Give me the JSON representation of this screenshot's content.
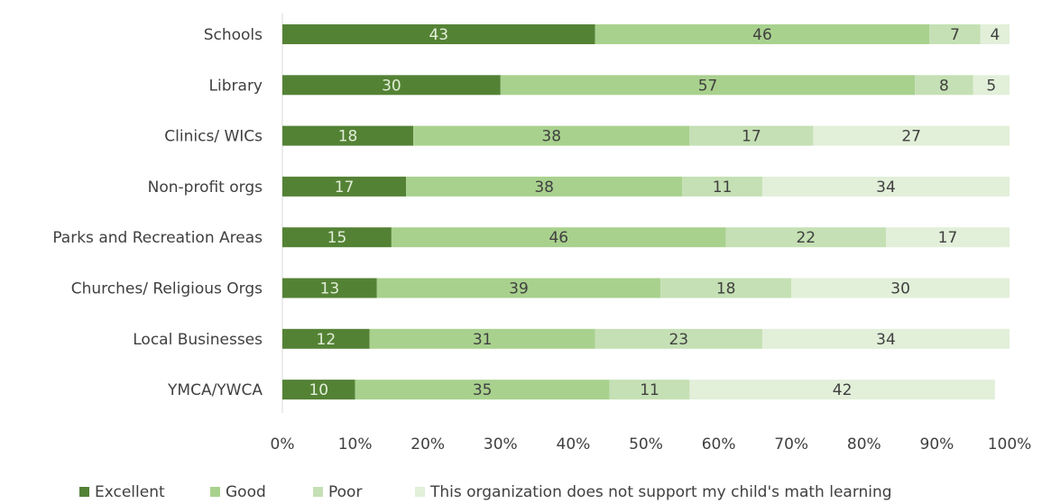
{
  "chart_data": {
    "type": "bar",
    "orientation": "horizontal",
    "stacked": "percent",
    "title": "",
    "xlabel": "",
    "ylabel": "",
    "categories": [
      "Schools",
      "Library",
      "Clinics/ WICs",
      "Non-profit orgs",
      "Parks and Recreation Areas",
      "Churches/ Religious Orgs",
      "Local Businesses",
      "YMCA/YWCA"
    ],
    "series": [
      {
        "name": "Excellent",
        "color": "#548235",
        "label_color": "#e2efd9",
        "values": [
          43,
          30,
          18,
          17,
          15,
          13,
          12,
          10
        ]
      },
      {
        "name": "Good",
        "color": "#a9d18e",
        "label_color": "#404040",
        "values": [
          46,
          57,
          38,
          38,
          46,
          39,
          31,
          35
        ]
      },
      {
        "name": "Poor",
        "color": "#c5e0b4",
        "label_color": "#404040",
        "values": [
          7,
          8,
          17,
          11,
          22,
          18,
          23,
          11
        ]
      },
      {
        "name": "This organization does not support my child's math learning",
        "color": "#e2efd9",
        "label_color": "#404040",
        "values": [
          4,
          5,
          27,
          34,
          17,
          30,
          34,
          42
        ]
      }
    ],
    "xlim": [
      0,
      100
    ],
    "x_ticks": [
      "0%",
      "10%",
      "20%",
      "30%",
      "40%",
      "50%",
      "60%",
      "70%",
      "80%",
      "90%",
      "100%"
    ],
    "grid": false,
    "legend_position": "bottom"
  }
}
